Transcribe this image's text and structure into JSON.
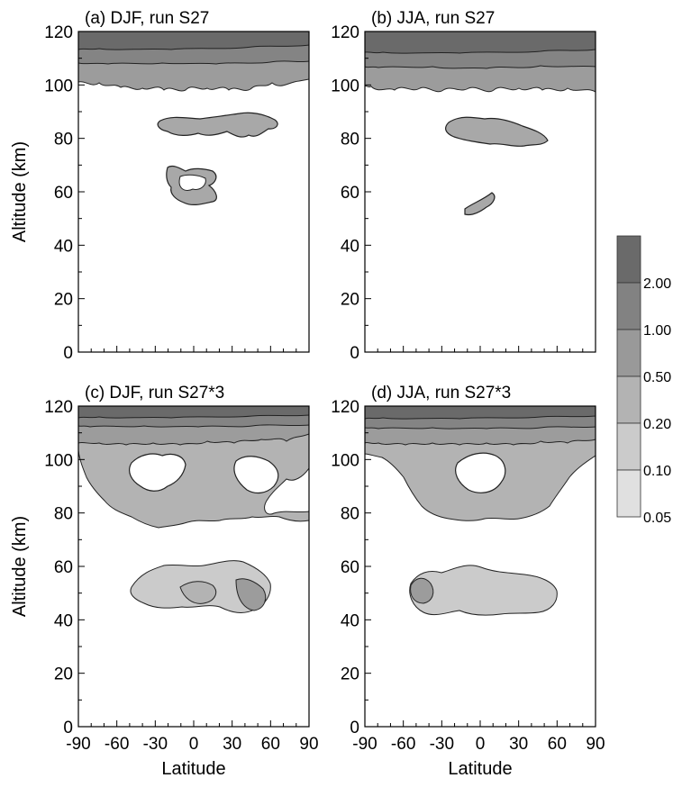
{
  "chart_data": {
    "type": "contour",
    "panels": [
      {
        "title": "(a)   DJF, run S27",
        "xlabel": "",
        "ylabel": "Altitude (km)",
        "xlim": [
          -90,
          90
        ],
        "ylim": [
          0,
          120
        ],
        "xticks": [
          "-90",
          "-60",
          "-30",
          "0",
          "30",
          "60",
          "90"
        ],
        "yticks": [
          "0",
          "20",
          "40",
          "60",
          "80",
          "100",
          "120"
        ],
        "shaded_regions": [
          {
            "level": ">2.00",
            "lat": [
              -90,
              90
            ],
            "alt": [
              112,
              120
            ]
          },
          {
            "level": "1.00-2.00",
            "lat": [
              -90,
              90
            ],
            "alt": [
              106,
              114
            ]
          },
          {
            "level": "0.50-1.00",
            "lat": [
              -90,
              90
            ],
            "alt": [
              99,
              108
            ]
          },
          {
            "level": "0.20-0.50",
            "lat": [
              -25,
              38
            ],
            "alt": [
              78,
              88
            ]
          },
          {
            "level": "0.20-0.50",
            "lat": [
              -25,
              -5
            ],
            "alt": [
              54,
              68
            ]
          }
        ]
      },
      {
        "title": "(b)   JJA, run S27",
        "xlabel": "",
        "ylabel": "",
        "xlim": [
          -90,
          90
        ],
        "ylim": [
          0,
          120
        ],
        "xticks": [
          "-90",
          "-60",
          "-30",
          "0",
          "30",
          "60",
          "90"
        ],
        "yticks": [
          "0",
          "20",
          "40",
          "60",
          "80",
          "100",
          "120"
        ],
        "shaded_regions": [
          {
            "level": ">2.00",
            "lat": [
              -90,
              90
            ],
            "alt": [
              114,
              120
            ]
          },
          {
            "level": "1.00-2.00",
            "lat": [
              -90,
              90
            ],
            "alt": [
              108,
              115
            ]
          },
          {
            "level": "0.50-1.00",
            "lat": [
              -90,
              90
            ],
            "alt": [
              99,
              109
            ]
          },
          {
            "level": "0.20-0.50",
            "lat": [
              -25,
              48
            ],
            "alt": [
              76,
              87
            ]
          },
          {
            "level": "0.20-0.50",
            "lat": [
              -13,
              17
            ],
            "alt": [
              52,
              60
            ]
          }
        ]
      },
      {
        "title": "(c)   DJF, run S27*3",
        "xlabel": "Latitude",
        "ylabel": "Altitude (km)",
        "xlim": [
          -90,
          90
        ],
        "ylim": [
          0,
          120
        ],
        "xticks": [
          "-90",
          "-60",
          "-30",
          "0",
          "30",
          "60",
          "90"
        ],
        "yticks": [
          "0",
          "20",
          "40",
          "60",
          "80",
          "100",
          "120"
        ],
        "shaded_regions": [
          {
            "level": ">2.00",
            "lat": [
              -90,
              90
            ],
            "alt": [
              113,
              120
            ]
          },
          {
            "level": "1.00-2.00",
            "lat": [
              -90,
              90
            ],
            "alt": [
              107,
              114
            ]
          },
          {
            "level": "0.50-1.00",
            "lat": [
              -90,
              80
            ],
            "alt": [
              100,
              108
            ]
          },
          {
            "level": "0.20-0.50",
            "lat": [
              -85,
              90
            ],
            "alt": [
              76,
              101
            ]
          },
          {
            "level": "0.10-0.20",
            "lat": [
              -45,
              60
            ],
            "alt": [
              43,
              61
            ]
          }
        ]
      },
      {
        "title": "(d)   JJA, run S27*3",
        "xlabel": "Latitude",
        "ylabel": "",
        "xlim": [
          -90,
          90
        ],
        "ylim": [
          0,
          120
        ],
        "xticks": [
          "-90",
          "-60",
          "-30",
          "0",
          "30",
          "60",
          "90"
        ],
        "yticks": [
          "0",
          "20",
          "40",
          "60",
          "80",
          "100",
          "120"
        ],
        "shaded_regions": [
          {
            "level": ">2.00",
            "lat": [
              -90,
              90
            ],
            "alt": [
              114,
              120
            ]
          },
          {
            "level": "1.00-2.00",
            "lat": [
              -90,
              90
            ],
            "alt": [
              108,
              115
            ]
          },
          {
            "level": "0.50-1.00",
            "lat": [
              -80,
              85
            ],
            "alt": [
              101,
              109
            ]
          },
          {
            "level": "0.20-0.50",
            "lat": [
              -70,
              75
            ],
            "alt": [
              77,
              102
            ]
          },
          {
            "level": "0.10-0.20",
            "lat": [
              -55,
              60
            ],
            "alt": [
              42,
              62
            ]
          }
        ]
      }
    ],
    "colorbar": {
      "labels": [
        "2.00",
        "1.00",
        "0.50",
        "0.20",
        "0.10",
        "0.05"
      ],
      "fills": [
        "#6a6a6a",
        "#828282",
        "#999999",
        "#b3b3b3",
        "#cbcbcb",
        "#e0e0e0"
      ]
    }
  }
}
